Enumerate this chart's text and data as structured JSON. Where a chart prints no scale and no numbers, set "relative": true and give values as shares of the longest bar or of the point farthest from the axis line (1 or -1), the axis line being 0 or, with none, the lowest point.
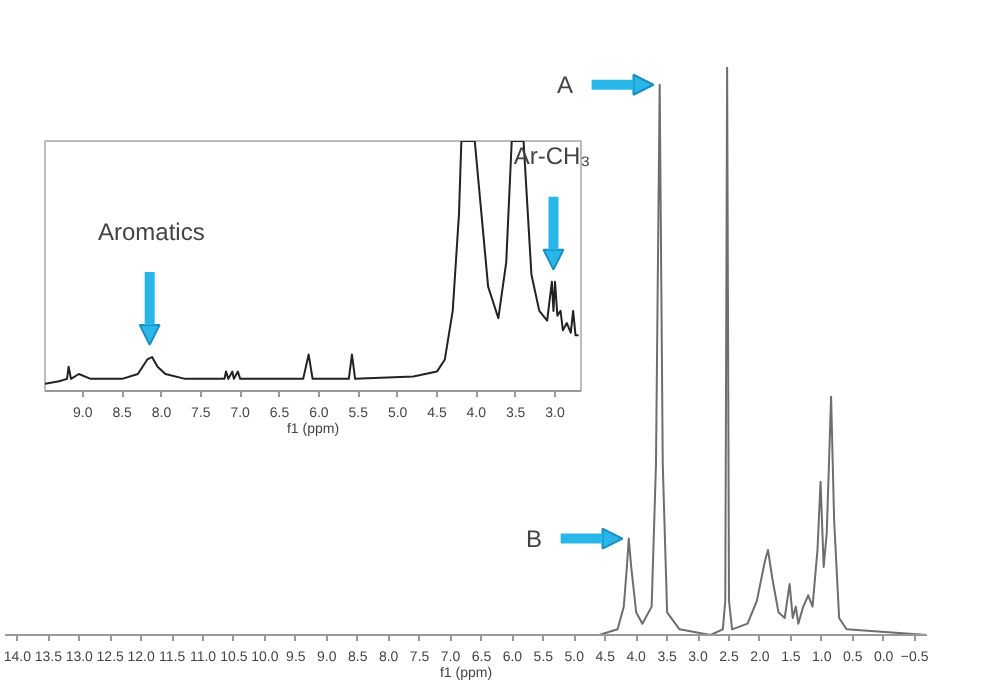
{
  "chart_data": [
    {
      "type": "line",
      "relative": true,
      "xlabel": "f1 (ppm)",
      "tick_labels": "x",
      "color": "#6e6e6e",
      "xlim": [
        14.2,
        -0.7
      ],
      "xticks": [
        {
          "value": 14,
          "label": "14.0"
        },
        13.5,
        {
          "value": 13,
          "label": "13.0"
        },
        12.5,
        {
          "value": 12,
          "label": "12.0"
        },
        11.5,
        {
          "value": 11,
          "label": "11.0"
        },
        10.5,
        {
          "value": 10,
          "label": "10.0"
        },
        9.5,
        {
          "value": 9,
          "label": "9.0"
        },
        8.5,
        {
          "value": 8,
          "label": "8.0"
        },
        7.5,
        {
          "value": 7,
          "label": "7.0"
        },
        6.5,
        {
          "value": 6,
          "label": "6.0"
        },
        5.5,
        {
          "value": 5,
          "label": "5.0"
        },
        4.5,
        {
          "value": 4,
          "label": "4.0"
        },
        3.5,
        {
          "value": 3,
          "label": "3.0"
        },
        2.5,
        {
          "value": 2,
          "label": "2.0"
        },
        1.5,
        {
          "value": 1,
          "label": "1.0"
        },
        0.5,
        {
          "value": 0,
          "label": "0.0"
        },
        -0.5
      ],
      "x": [
        14.2,
        4.6,
        4.3,
        4.2,
        4.15,
        4.12,
        4.08,
        4.0,
        3.9,
        3.75,
        3.68,
        3.62,
        3.57,
        3.5,
        3.3,
        2.8,
        2.6,
        2.56,
        2.53,
        2.5,
        2.45,
        2.2,
        2.05,
        1.92,
        1.87,
        1.8,
        1.7,
        1.6,
        1.52,
        1.47,
        1.42,
        1.38,
        1.3,
        1.22,
        1.15,
        1.07,
        1.02,
        0.97,
        0.92,
        0.85,
        0.8,
        0.72,
        0.6,
        -0.7
      ],
      "values": [
        0,
        0,
        0.01,
        0.05,
        0.12,
        0.17,
        0.12,
        0.04,
        0.02,
        0.05,
        0.3,
        0.97,
        0.3,
        0.04,
        0.01,
        0,
        0.01,
        0.06,
        1.0,
        0.06,
        0.01,
        0.02,
        0.06,
        0.13,
        0.15,
        0.1,
        0.04,
        0.03,
        0.09,
        0.03,
        0.05,
        0.02,
        0.05,
        0.07,
        0.05,
        0.15,
        0.27,
        0.12,
        0.18,
        0.42,
        0.2,
        0.03,
        0.01,
        0
      ],
      "annotations": [
        {
          "text": "A",
          "x": 3.62,
          "y": 0.97
        },
        {
          "text": "B",
          "x": 4.12,
          "y": 0.17
        }
      ]
    },
    {
      "type": "line",
      "relative": true,
      "xlabel": "f1 (ppm)",
      "tick_labels": "x",
      "color": "#222222",
      "xlim": [
        9.48,
        2.67
      ],
      "xticks": [
        {
          "value": 9,
          "label": "9.0"
        },
        8.5,
        {
          "value": 8,
          "label": "8.0"
        },
        7.5,
        {
          "value": 7,
          "label": "7.0"
        },
        6.5,
        {
          "value": 6,
          "label": "6.0"
        },
        5.5,
        {
          "value": 5,
          "label": "5.0"
        },
        4.5,
        {
          "value": 4,
          "label": "4.0"
        },
        3.5,
        {
          "value": 3,
          "label": "3.0"
        }
      ],
      "x": [
        9.48,
        9.3,
        9.2,
        9.18,
        9.15,
        9.05,
        8.9,
        8.5,
        8.3,
        8.18,
        8.12,
        8.05,
        7.95,
        7.7,
        7.2,
        7.18,
        7.15,
        7.1,
        7.08,
        7.03,
        7.0,
        6.2,
        6.13,
        6.08,
        5.62,
        5.58,
        5.54,
        4.8,
        4.5,
        4.4,
        4.3,
        4.22,
        4.19,
        4.02,
        3.85,
        3.72,
        3.62,
        3.55,
        3.4,
        3.3,
        3.2,
        3.1,
        3.04,
        3.02,
        3.0,
        2.97,
        2.93,
        2.9,
        2.85,
        2.8,
        2.77,
        2.74,
        2.7
      ],
      "values": [
        0,
        0.01,
        0.02,
        0.07,
        0.02,
        0.04,
        0.02,
        0.02,
        0.04,
        0.1,
        0.11,
        0.07,
        0.04,
        0.02,
        0.02,
        0.05,
        0.02,
        0.05,
        0.02,
        0.05,
        0.02,
        0.02,
        0.12,
        0.02,
        0.02,
        0.12,
        0.02,
        0.03,
        0.05,
        0.1,
        0.3,
        0.7,
        1.0,
        1.0,
        0.4,
        0.27,
        0.5,
        1.0,
        1.0,
        0.45,
        0.3,
        0.26,
        0.42,
        0.3,
        0.42,
        0.28,
        0.3,
        0.22,
        0.25,
        0.21,
        0.3,
        0.2,
        0.2
      ],
      "annotations": [
        {
          "text": "Aromatics",
          "x": 8.15,
          "y": 0.11
        },
        {
          "text": "Ar-CH₃",
          "x": 3.02,
          "y": 0.42
        }
      ]
    }
  ]
}
